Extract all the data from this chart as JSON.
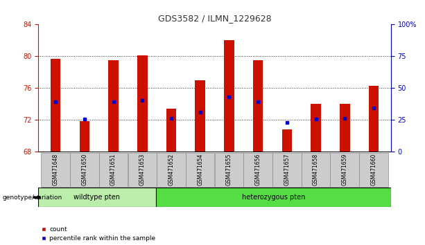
{
  "title": "GDS3582 / ILMN_1229628",
  "samples": [
    "GSM471648",
    "GSM471650",
    "GSM471651",
    "GSM471653",
    "GSM471652",
    "GSM471654",
    "GSM471655",
    "GSM471656",
    "GSM471657",
    "GSM471658",
    "GSM471659",
    "GSM471660"
  ],
  "count_values": [
    79.7,
    71.9,
    79.5,
    80.1,
    73.4,
    77.0,
    82.0,
    79.5,
    70.8,
    74.0,
    74.0,
    76.3
  ],
  "percentile_values": [
    74.3,
    72.1,
    74.3,
    74.5,
    72.2,
    73.0,
    74.9,
    74.3,
    71.7,
    72.1,
    72.2,
    73.5
  ],
  "baseline": 68,
  "ylim_left": [
    68,
    84
  ],
  "ylim_right": [
    0,
    100
  ],
  "yticks_left": [
    68,
    72,
    76,
    80,
    84
  ],
  "yticks_right": [
    0,
    25,
    50,
    75,
    100
  ],
  "ytick_labels_right": [
    "0",
    "25",
    "50",
    "75",
    "100%"
  ],
  "bar_color": "#cc1100",
  "percentile_color": "#0000cc",
  "wildtype_count": 4,
  "wildtype_label": "wildtype pten",
  "heterozygous_label": "heterozygous pten",
  "wildtype_color": "#bbeeaa",
  "heterozygous_color": "#55dd44",
  "sample_bg_color": "#cccccc",
  "legend_count_label": "count",
  "legend_percentile_label": "percentile rank within the sample",
  "genotype_label": "genotype/variation",
  "title_color": "#333333",
  "left_axis_color": "#cc1100",
  "right_axis_color": "#0000cc",
  "grid_color": "#333333"
}
